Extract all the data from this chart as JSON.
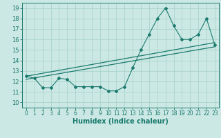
{
  "xlabel": "Humidex (Indice chaleur)",
  "bg_color": "#cce8e4",
  "grid_color": "#aad4cc",
  "line_color": "#1a7a6e",
  "xlim": [
    -0.5,
    23.5
  ],
  "ylim": [
    9.5,
    19.5
  ],
  "xticks": [
    0,
    1,
    2,
    3,
    4,
    5,
    6,
    7,
    8,
    9,
    10,
    11,
    12,
    13,
    14,
    15,
    16,
    17,
    18,
    19,
    20,
    21,
    22,
    23
  ],
  "yticks": [
    10,
    11,
    12,
    13,
    14,
    15,
    16,
    17,
    18,
    19
  ],
  "series1_x": [
    0,
    1,
    2,
    3,
    4,
    5,
    6,
    7,
    8,
    9,
    10,
    11,
    12,
    13,
    14,
    15,
    16,
    17,
    18,
    19,
    20,
    21,
    22,
    23
  ],
  "series1_y": [
    12.5,
    12.3,
    11.4,
    11.4,
    12.3,
    12.2,
    11.5,
    11.5,
    11.5,
    11.5,
    11.1,
    11.1,
    11.5,
    13.3,
    15.0,
    16.5,
    18.0,
    19.0,
    17.3,
    16.0,
    16.0,
    16.5,
    18.0,
    15.5
  ],
  "series2_x": [
    0,
    23
  ],
  "series2_y": [
    12.2,
    15.3
  ],
  "series3_x": [
    0,
    23
  ],
  "series3_y": [
    12.5,
    15.7
  ]
}
